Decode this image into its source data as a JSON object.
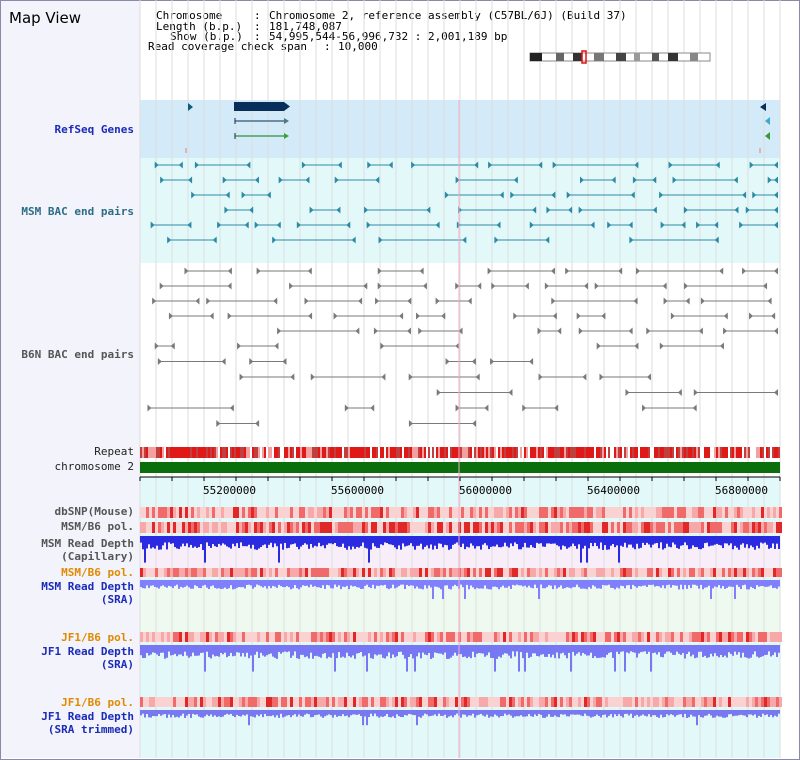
{
  "window": {
    "title": "Map View"
  },
  "info": {
    "chromosome_key": "Chromosome",
    "chromosome_value": "Chromosome 2, reference assembly (C57BL/6J) (Build 37)",
    "length_key": "Length (b.p.)",
    "length_value": "181,748,087",
    "show_key": "Show (b.p.)",
    "show_value": "54,995,544-56,996,732 : 2,001,189 bp",
    "coverage_key": "Read coverage check span",
    "coverage_value": "10,000"
  },
  "tracks": {
    "refseq": "RefSeq Genes",
    "msm_bac": "MSM BAC end pairs",
    "b6n_bac": "B6N BAC end pairs",
    "repeat": "Repeat",
    "chromosome": "chromosome 2",
    "dbsnp": "dbSNP(Mouse)",
    "msm_b6_pol_1": "MSM/B6 pol.",
    "msm_depth_cap_1": "MSM Read Depth",
    "msm_depth_cap_2": "(Capillary)",
    "msm_b6_pol_2": "MSM/B6 pol.",
    "msm_depth_sra_1": "MSM Read Depth",
    "msm_depth_sra_2": "(SRA)",
    "jf1_b6_pol_1": "JF1/B6 pol.",
    "jf1_depth_sra_1": "JF1 Read Depth",
    "jf1_depth_sra_2": "(SRA)",
    "jf1_b6_pol_2": "JF1/B6 pol.",
    "jf1_depth_trim_1": "JF1 Read Depth",
    "jf1_depth_trim_2": "(SRA trimmed)"
  },
  "axis": {
    "ticks": [
      "55200000",
      "55600000",
      "56000000",
      "56400000",
      "56800000"
    ]
  },
  "colors": {
    "refseq_bg": "#d3eaf8",
    "bac_bg": "#e3f9f9",
    "chromosome_bar": "#0a6e0a",
    "repeat_red": "#e02020",
    "polymorphism": "#f06060",
    "depth_blue": "#2a2ae0",
    "depth_light_blue": "#8080ff"
  }
}
